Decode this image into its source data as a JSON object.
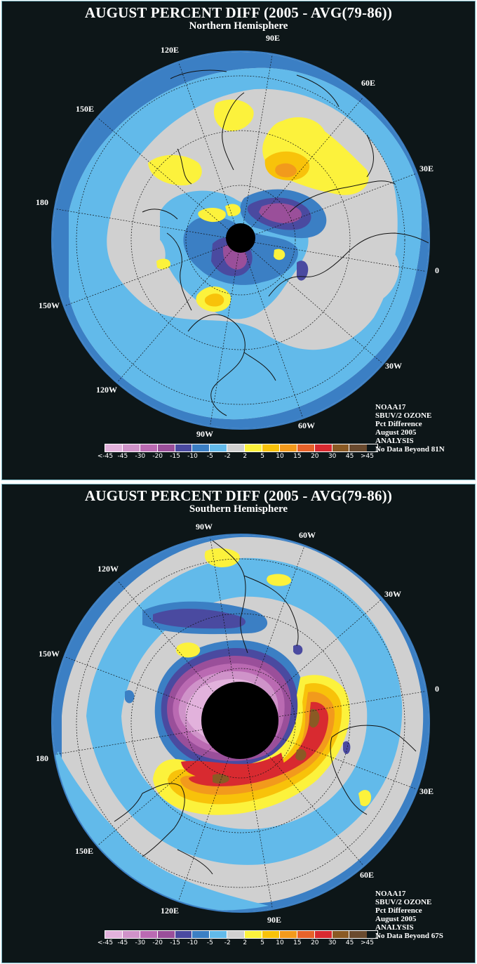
{
  "colors": {
    "background": "#0d1618",
    "land_outline": "#111111",
    "legend": [
      "#e2b2dc",
      "#cf93c9",
      "#ba6ab2",
      "#9a4f9a",
      "#4a4aa0",
      "#3b7fc4",
      "#62baea",
      "#d0d0d0",
      "#fcf23c",
      "#f8c20a",
      "#f29a1c",
      "#e6622a",
      "#d82a30",
      "#8a5a24",
      "#6a4a2e"
    ]
  },
  "legend_labels": [
    "<-45",
    "-45",
    "-30",
    "-20",
    "-15",
    "-10",
    "-5",
    "-2",
    "2",
    "5",
    "10",
    "15",
    "20",
    "30",
    "45",
    ">45"
  ],
  "northern": {
    "title": "AUGUST PERCENT DIFF (2005 - AVG(79-86))",
    "subtitle": "Northern Hemisphere",
    "info": [
      "NOAA17",
      "SBUV/2 OZONE",
      "Pct Difference",
      "August 2005",
      "ANALYSIS",
      "No Data Beyond 81N"
    ],
    "longitudes": [
      "90E",
      "60E",
      "30E",
      "0",
      "30W",
      "60W",
      "90W",
      "120W",
      "150W",
      "180",
      "150E",
      "120E"
    ]
  },
  "southern": {
    "title": "AUGUST PERCENT DIFF (2005 - AVG(79-86))",
    "subtitle": "Southern Hemisphere",
    "info": [
      "NOAA17",
      "SBUV/2 OZONE",
      "Pct Difference",
      "August 2005",
      "ANALYSIS",
      "No Data Beyond 67S"
    ],
    "longitudes": [
      "90W",
      "60W",
      "30W",
      "0",
      "30E",
      "60E",
      "90E",
      "120E",
      "150E",
      "180",
      "150W",
      "120W"
    ]
  }
}
